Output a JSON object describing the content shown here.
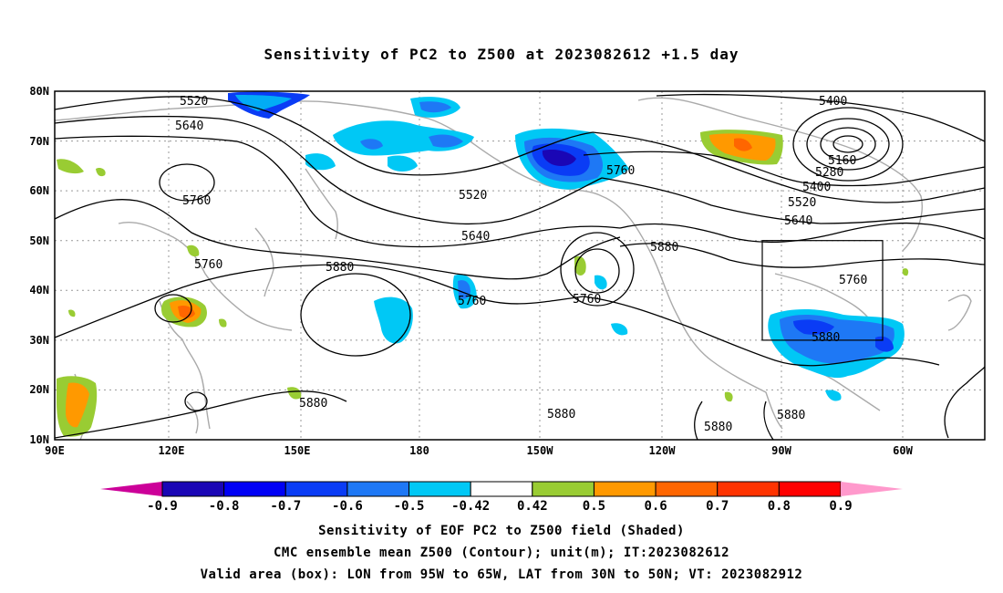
{
  "title": "Sensitivity of PC2 to Z500 at 2023082612 +1.5 day",
  "axes": {
    "lat_labels": [
      "80N",
      "70N",
      "60N",
      "50N",
      "40N",
      "30N",
      "20N",
      "10N"
    ],
    "lon_labels": [
      "90E",
      "120E",
      "150E",
      "180",
      "150W",
      "120W",
      "90W",
      "60W"
    ]
  },
  "contour_labels": [
    "5520",
    "5640",
    "5760",
    "5760",
    "5880",
    "5880",
    "5520",
    "5640",
    "5760",
    "5760",
    "5760",
    "5880",
    "5880",
    "5400",
    "5160",
    "5280",
    "5400",
    "5520",
    "5640",
    "5760",
    "5880",
    "5880",
    "5880"
  ],
  "colorbar": {
    "ticks": [
      "-0.9",
      "-0.8",
      "-0.7",
      "-0.6",
      "-0.5",
      "-0.42",
      "0.42",
      "0.5",
      "0.6",
      "0.7",
      "0.8",
      "0.9"
    ],
    "colors": [
      "#1a06b5",
      "#0000f5",
      "#0a3cf5",
      "#1e78f5",
      "#00c8f5",
      "#ffffff",
      "#99cc33",
      "#ff9900",
      "#ff6600",
      "#ff3300",
      "#ff0000"
    ],
    "low_arrow_color": "#cc0099",
    "high_arrow_color": "#ff99cc"
  },
  "captions": [
    "Sensitivity of EOF PC2 to Z500 field (Shaded)",
    "CMC ensemble mean Z500 (Contour); unit(m); IT:2023082612",
    "Valid area (box): LON from 95W to 65W, LAT from 30N to 50N; VT: 2023082912"
  ]
}
